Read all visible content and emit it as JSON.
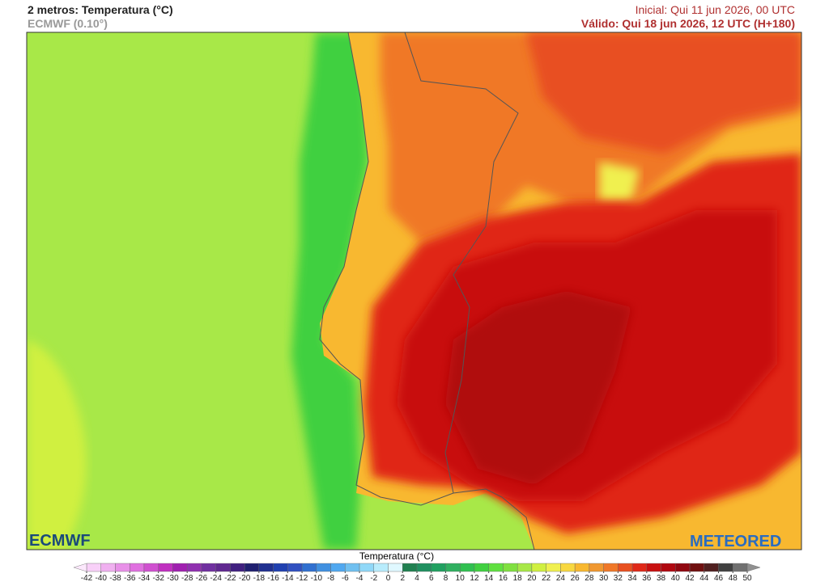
{
  "header": {
    "title": "2 metros: Temperatura (°C)",
    "model": "ECMWF (0.10°)",
    "initial": "Inicial: Qui 11 jun 2026, 00 UTC",
    "valid": "Válido: Qui 18 jun 2026, 12 UTC (H+180)"
  },
  "logos": {
    "left": "ECMWF",
    "right": "METEORED"
  },
  "colorbar": {
    "label": "Temperatura (°C)",
    "ticks": [
      -42,
      -40,
      -38,
      -36,
      -34,
      -32,
      -30,
      -28,
      -26,
      -24,
      -22,
      -20,
      -18,
      -16,
      -14,
      -12,
      -10,
      -8,
      -6,
      -4,
      -2,
      0,
      2,
      4,
      6,
      8,
      10,
      12,
      14,
      16,
      18,
      20,
      22,
      24,
      26,
      28,
      30,
      32,
      34,
      36,
      38,
      40,
      42,
      44,
      46,
      48,
      50
    ],
    "colors": [
      "#f8d0f8",
      "#f0b0f0",
      "#e890e8",
      "#e070e0",
      "#d050d0",
      "#c030c0",
      "#a020b0",
      "#9030b0",
      "#7030a0",
      "#602890",
      "#402080",
      "#202070",
      "#203090",
      "#2040b0",
      "#3050c0",
      "#3070d0",
      "#4090e0",
      "#50a8f0",
      "#70c0f0",
      "#90d8f8",
      "#b8ecfc",
      "#e0f8ff",
      "#208050",
      "#209060",
      "#20a060",
      "#30b060",
      "#30c050",
      "#40d040",
      "#60e040",
      "#80e040",
      "#a8e848",
      "#d0f040",
      "#f0f050",
      "#f8d840",
      "#f8b830",
      "#f09830",
      "#f07828",
      "#e85020",
      "#e02818",
      "#c81010",
      "#b00810",
      "#900810",
      "#701010",
      "#502020",
      "#404040",
      "#707070"
    ],
    "under_color": "#fce8fc",
    "over_color": "#909090"
  }
}
